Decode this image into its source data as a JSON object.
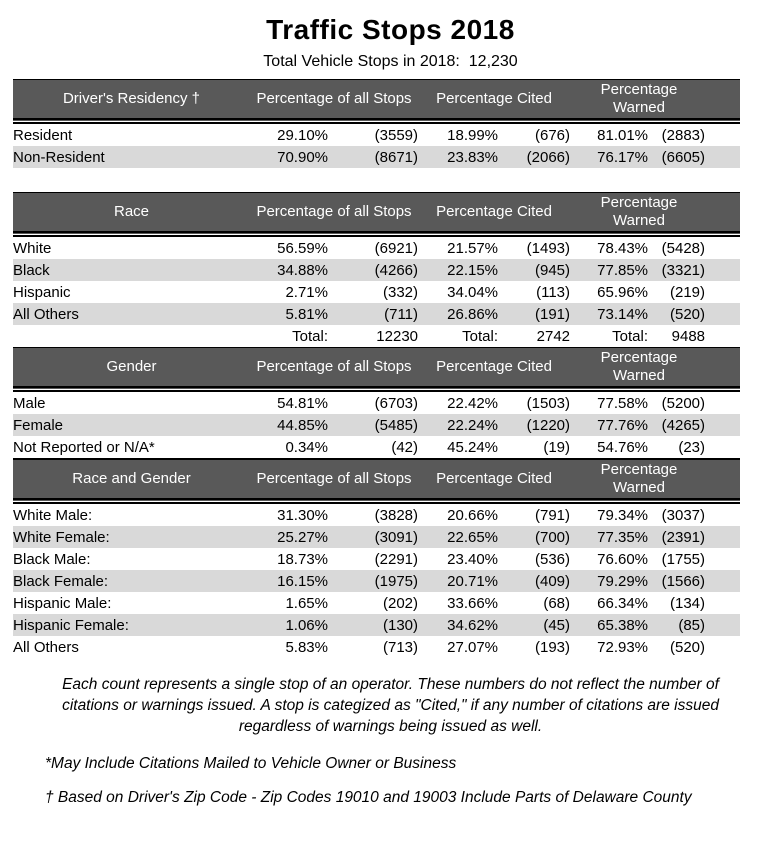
{
  "title": "Traffic Stops 2018",
  "subtitle": "Total Vehicle Stops in 2018:  12,230",
  "column_groups": {
    "stops": "Percentage of all Stops",
    "cited": "Percentage Cited",
    "warned": "Percentage Warned"
  },
  "tables": [
    {
      "id": "drivers-residency",
      "category_header": "Driver's Residency †",
      "gap_before": false,
      "top_border": false,
      "rows": [
        {
          "label": "Resident",
          "values": [
            "29.10%",
            "(3559)",
            "18.99%",
            "(676)",
            "81.01%",
            "(2883)"
          ]
        },
        {
          "label": "Non-Resident",
          "values": [
            "70.90%",
            "(8671)",
            "23.83%",
            "(2066)",
            "76.17%",
            "(6605)"
          ]
        }
      ]
    },
    {
      "id": "race",
      "category_header": "Race",
      "gap_before": true,
      "top_border": false,
      "rows": [
        {
          "label": "White",
          "values": [
            "56.59%",
            "(6921)",
            "21.57%",
            "(1493)",
            "78.43%",
            "(5428)"
          ]
        },
        {
          "label": "Black",
          "values": [
            "34.88%",
            "(4266)",
            "22.15%",
            "(945)",
            "77.85%",
            "(3321)"
          ]
        },
        {
          "label": "Hispanic",
          "values": [
            "2.71%",
            "(332)",
            "34.04%",
            "(113)",
            "65.96%",
            "(219)"
          ]
        },
        {
          "label": "All Others",
          "values": [
            "5.81%",
            "(711)",
            "26.86%",
            "(191)",
            "73.14%",
            "(520)"
          ]
        },
        {
          "label": "",
          "values": [
            "Total:",
            "12230",
            "Total:",
            "2742",
            "Total:",
            "9488"
          ]
        }
      ]
    },
    {
      "id": "gender",
      "category_header": "Gender",
      "gap_before": false,
      "top_border": false,
      "rows": [
        {
          "label": "Male",
          "values": [
            "54.81%",
            "(6703)",
            "22.42%",
            "(1503)",
            "77.58%",
            "(5200)"
          ]
        },
        {
          "label": "Female",
          "values": [
            "44.85%",
            "(5485)",
            "22.24%",
            "(1220)",
            "77.76%",
            "(4265)"
          ]
        },
        {
          "label": "Not Reported or N/A*",
          "values": [
            "0.34%",
            "(42)",
            "45.24%",
            "(19)",
            "54.76%",
            "(23)"
          ]
        }
      ]
    },
    {
      "id": "race-and-gender",
      "category_header": "Race and Gender",
      "gap_before": false,
      "top_border": true,
      "rows": [
        {
          "label": "White Male:",
          "values": [
            "31.30%",
            "(3828)",
            "20.66%",
            "(791)",
            "79.34%",
            "(3037)"
          ]
        },
        {
          "label": "White Female:",
          "values": [
            "25.27%",
            "(3091)",
            "22.65%",
            "(700)",
            "77.35%",
            "(2391)"
          ]
        },
        {
          "label": "Black Male:",
          "values": [
            "18.73%",
            "(2291)",
            "23.40%",
            "(536)",
            "76.60%",
            "(1755)"
          ]
        },
        {
          "label": "Black Female:",
          "values": [
            "16.15%",
            "(1975)",
            "20.71%",
            "(409)",
            "79.29%",
            "(1566)"
          ]
        },
        {
          "label": "Hispanic Male:",
          "values": [
            "1.65%",
            "(202)",
            "33.66%",
            "(68)",
            "66.34%",
            "(134)"
          ]
        },
        {
          "label": "Hispanic Female:",
          "values": [
            "1.06%",
            "(130)",
            "34.62%",
            "(45)",
            "65.38%",
            "(85)"
          ]
        },
        {
          "label": "All Others",
          "values": [
            "5.83%",
            "(713)",
            "27.07%",
            "(193)",
            "72.93%",
            "(520)"
          ]
        }
      ]
    }
  ],
  "notes": {
    "paragraph": "Each count represents a single stop of an operator.  These numbers do not reflect the number of citations or warnings issued.  A stop is categized as \"Cited,\" if any number of citations are issued regardless of warnings being issued as well.",
    "asterisk": "*May Include Citations Mailed to Vehicle Owner or Business",
    "dagger": "† Based on Driver's Zip Code - Zip Codes 19010 and 19003 Include Parts of Delaware County"
  },
  "colors": {
    "header_bg": "#595959",
    "header_text": "#ffffff",
    "row_stripe": "#d9d9d9",
    "text": "#000000"
  }
}
